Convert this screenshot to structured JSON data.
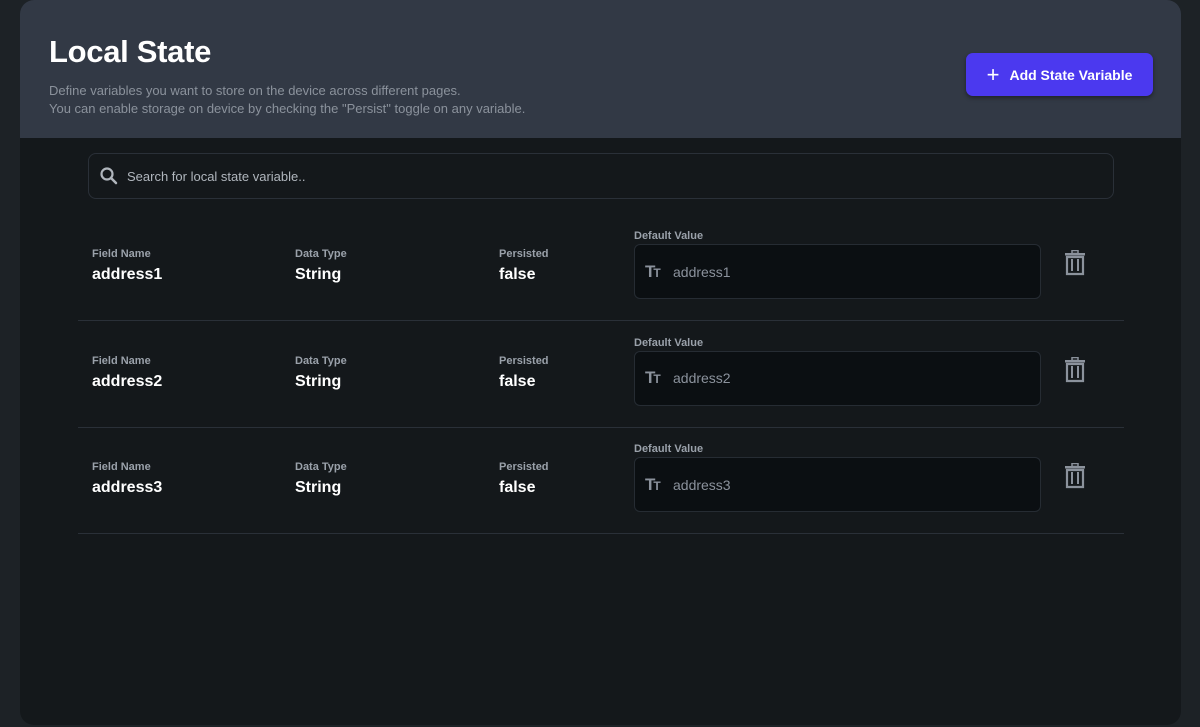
{
  "header": {
    "title": "Local State",
    "description_line1": "Define variables you want to store on the device across different pages.",
    "description_line2": "You can enable storage on device by checking the \"Persist\" toggle on any variable.",
    "add_button_label": "Add State Variable"
  },
  "search": {
    "placeholder": "Search for local state variable.."
  },
  "labels": {
    "field_name": "Field Name",
    "data_type": "Data Type",
    "persisted": "Persisted",
    "default_value": "Default Value"
  },
  "variables": [
    {
      "field_name": "address1",
      "data_type": "String",
      "persisted": "false",
      "default_value": "address1"
    },
    {
      "field_name": "address2",
      "data_type": "String",
      "persisted": "false",
      "default_value": "address2"
    },
    {
      "field_name": "address3",
      "data_type": "String",
      "persisted": "false",
      "default_value": "address3"
    }
  ],
  "colors": {
    "accent": "#4b39ef",
    "header_bg": "#323945",
    "card_bg": "#14181b"
  }
}
